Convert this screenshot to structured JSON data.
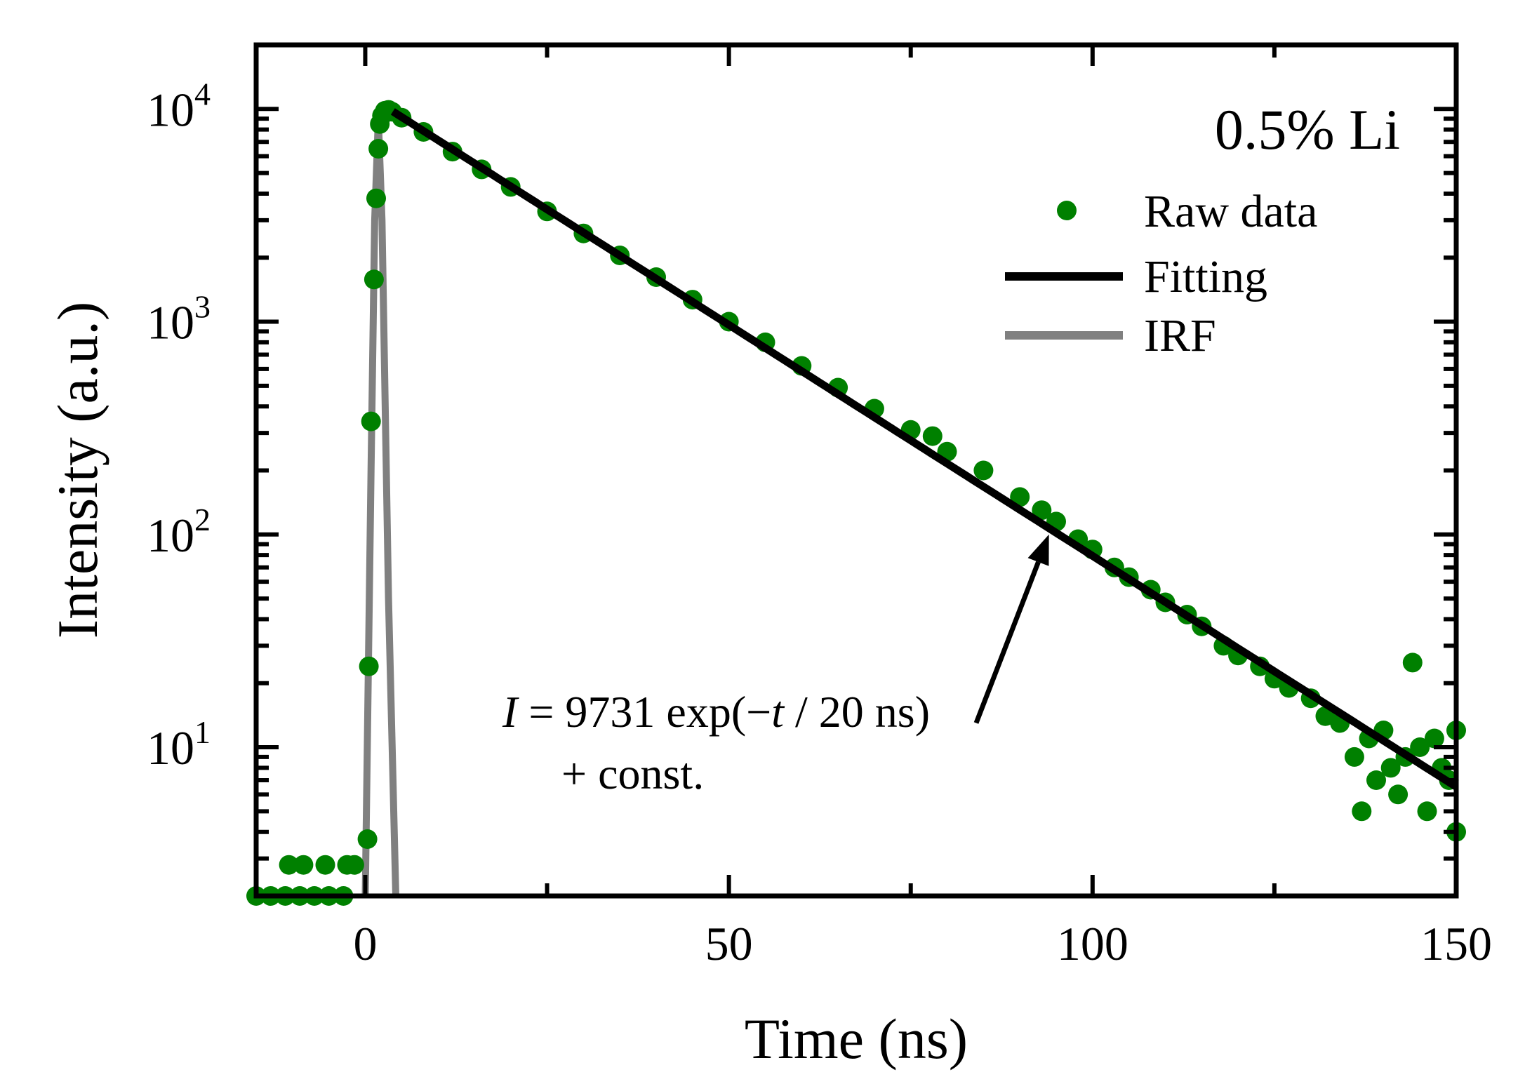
{
  "chart_data": {
    "type": "scatter",
    "title": "",
    "xlabel": "Time (ns)",
    "ylabel": "Intensity (a.u.)",
    "xlim": [
      -15,
      150
    ],
    "ylim": [
      2,
      20000
    ],
    "yscale": "log",
    "grid": false,
    "x_ticks": [
      0,
      50,
      100,
      150
    ],
    "x_tick_labels": [
      "0",
      "50",
      "100",
      "150"
    ],
    "y_ticks": [
      {
        "base": "10",
        "exp": "1",
        "value": 10
      },
      {
        "base": "10",
        "exp": "2",
        "value": 100
      },
      {
        "base": "10",
        "exp": "3",
        "value": 1000
      },
      {
        "base": "10",
        "exp": "4",
        "value": 10000
      }
    ],
    "sample_label": "0.5% Li",
    "legend_position": "top-right",
    "series": [
      {
        "name": "Raw data",
        "kind": "points",
        "color": "#008000",
        "points": [
          [
            -15,
            2
          ],
          [
            -13,
            2
          ],
          [
            -11,
            2
          ],
          [
            -9,
            2
          ],
          [
            -7,
            2
          ],
          [
            -5,
            2
          ],
          [
            -3,
            2
          ],
          [
            -10.5,
            2.8
          ],
          [
            -8.5,
            2.8
          ],
          [
            -5.5,
            2.8
          ],
          [
            -2.5,
            2.8
          ],
          [
            -1.5,
            2.8
          ],
          [
            0.3,
            3.7
          ],
          [
            0.5,
            24
          ],
          [
            0.8,
            340
          ],
          [
            1.2,
            1580
          ],
          [
            1.5,
            3800
          ],
          [
            1.8,
            6500
          ],
          [
            2.0,
            8500
          ],
          [
            2.3,
            9300
          ],
          [
            2.7,
            9800
          ],
          [
            3.2,
            9900
          ],
          [
            3.7,
            9700
          ],
          [
            5,
            9100
          ],
          [
            8,
            7800
          ],
          [
            12,
            6300
          ],
          [
            16,
            5200
          ],
          [
            20,
            4300
          ],
          [
            25,
            3300
          ],
          [
            30,
            2600
          ],
          [
            35,
            2050
          ],
          [
            40,
            1620
          ],
          [
            45,
            1270
          ],
          [
            50,
            1000
          ],
          [
            55,
            800
          ],
          [
            60,
            620
          ],
          [
            65,
            490
          ],
          [
            70,
            390
          ],
          [
            75,
            310
          ],
          [
            78,
            290
          ],
          [
            80,
            245
          ],
          [
            85,
            200
          ],
          [
            90,
            150
          ],
          [
            93,
            130
          ],
          [
            95,
            115
          ],
          [
            98,
            95
          ],
          [
            100,
            85
          ],
          [
            103,
            70
          ],
          [
            105,
            63
          ],
          [
            108,
            55
          ],
          [
            110,
            48
          ],
          [
            113,
            42
          ],
          [
            115,
            37
          ],
          [
            118,
            30
          ],
          [
            120,
            27
          ],
          [
            123,
            24
          ],
          [
            125,
            21
          ],
          [
            127,
            19
          ],
          [
            130,
            17
          ],
          [
            132,
            14
          ],
          [
            134,
            13
          ],
          [
            136,
            9
          ],
          [
            137,
            5
          ],
          [
            138,
            11
          ],
          [
            139,
            7
          ],
          [
            140,
            12
          ],
          [
            141,
            8
          ],
          [
            142,
            6
          ],
          [
            143,
            9
          ],
          [
            144,
            25
          ],
          [
            145,
            10
          ],
          [
            146,
            5
          ],
          [
            147,
            11
          ],
          [
            148,
            8
          ],
          [
            149,
            7
          ],
          [
            150,
            4
          ],
          [
            150,
            12
          ]
        ]
      },
      {
        "name": "Fitting",
        "kind": "line",
        "color": "#000000",
        "x_range": [
          3.8,
          150
        ],
        "amplitude": 9731,
        "tau": 20,
        "const": 0.01
      },
      {
        "name": "IRF",
        "kind": "line",
        "color": "#808080",
        "points": [
          [
            0,
            2
          ],
          [
            0.8,
            200
          ],
          [
            1.3,
            3000
          ],
          [
            1.8,
            9000
          ],
          [
            2.3,
            3000
          ],
          [
            3.2,
            50
          ],
          [
            4.2,
            2
          ]
        ]
      }
    ],
    "annotation": {
      "var": "I",
      "eq": " = 9731 exp(",
      "minus": "−",
      "t": "t",
      "rest": " / 20 ns)",
      "line2": "+ const.",
      "arrow_from": [
        84,
        13
      ],
      "arrow_to": [
        94,
        100
      ]
    }
  }
}
